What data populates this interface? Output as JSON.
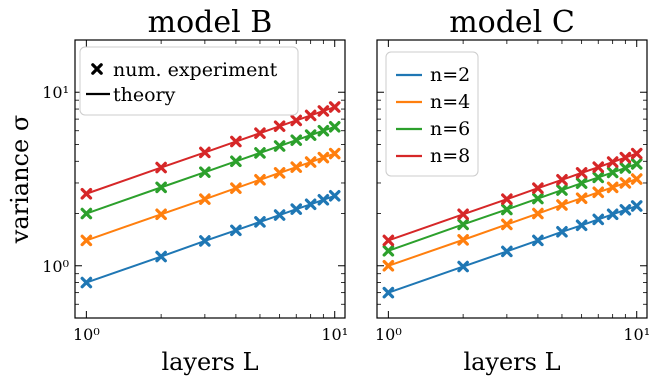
{
  "figure": {
    "ylabel": "variance σ",
    "legend_markers": {
      "experiment_label": "num. experiment",
      "theory_label": "theory",
      "placement": "upper-left of model B"
    }
  },
  "chart_data": [
    {
      "type": "line",
      "title": "model B",
      "xlabel": "layers L",
      "ylabel": "variance σ",
      "xscale": "log",
      "yscale": "log",
      "xlim": [
        0.9,
        11
      ],
      "ylim": [
        0.5,
        20
      ],
      "xticks": [
        {
          "value": 1,
          "label": "10⁰"
        },
        {
          "value": 10,
          "label": "10¹"
        }
      ],
      "yticks": [
        {
          "value": 1,
          "label": "10⁰"
        },
        {
          "value": 10,
          "label": "10¹"
        }
      ],
      "grid": false,
      "x": [
        1,
        2,
        3,
        4,
        5,
        6,
        7,
        8,
        9,
        10
      ],
      "series": [
        {
          "name": "n=2",
          "color": "#1f77b4",
          "values": [
            0.8,
            1.13,
            1.39,
            1.6,
            1.79,
            1.96,
            2.12,
            2.26,
            2.4,
            2.53
          ]
        },
        {
          "name": "n=4",
          "color": "#ff7f0e",
          "values": [
            1.4,
            1.98,
            2.42,
            2.8,
            3.13,
            3.43,
            3.7,
            3.96,
            4.2,
            4.43
          ]
        },
        {
          "name": "n=6",
          "color": "#2ca02c",
          "values": [
            2.0,
            2.83,
            3.46,
            4.0,
            4.47,
            4.9,
            5.29,
            5.66,
            6.0,
            6.32
          ]
        },
        {
          "name": "n=8",
          "color": "#d62728",
          "values": [
            2.6,
            3.68,
            4.5,
            5.2,
            5.81,
            6.37,
            6.88,
            7.35,
            7.8,
            8.22
          ]
        }
      ]
    },
    {
      "type": "line",
      "title": "model C",
      "xlabel": "layers L",
      "xscale": "log",
      "yscale": "log",
      "xlim": [
        0.9,
        11
      ],
      "ylim": [
        0.5,
        20
      ],
      "xticks": [
        {
          "value": 1,
          "label": "10⁰"
        },
        {
          "value": 10,
          "label": "10¹"
        }
      ],
      "grid": false,
      "legend": {
        "placement": "upper-left",
        "entries": [
          "n=2",
          "n=4",
          "n=6",
          "n=8"
        ]
      },
      "x": [
        1,
        2,
        3,
        4,
        5,
        6,
        7,
        8,
        9,
        10
      ],
      "series": [
        {
          "name": "n=2",
          "color": "#1f77b4",
          "values": [
            0.7,
            0.99,
            1.21,
            1.4,
            1.57,
            1.71,
            1.85,
            1.98,
            2.1,
            2.21
          ]
        },
        {
          "name": "n=4",
          "color": "#ff7f0e",
          "values": [
            1.0,
            1.41,
            1.73,
            2.0,
            2.24,
            2.45,
            2.65,
            2.83,
            3.0,
            3.16
          ]
        },
        {
          "name": "n=6",
          "color": "#2ca02c",
          "values": [
            1.22,
            1.73,
            2.11,
            2.44,
            2.73,
            2.99,
            3.23,
            3.45,
            3.66,
            3.86
          ]
        },
        {
          "name": "n=8",
          "color": "#d62728",
          "values": [
            1.4,
            1.98,
            2.42,
            2.8,
            3.13,
            3.43,
            3.7,
            3.96,
            4.2,
            4.43
          ]
        }
      ]
    }
  ]
}
